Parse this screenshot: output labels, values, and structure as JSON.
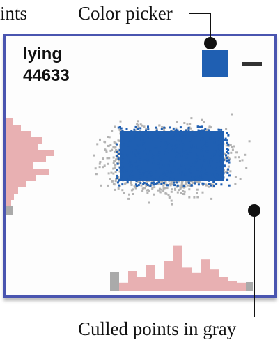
{
  "labels": {
    "cut_left": "ints",
    "color_picker": "Color picker",
    "culled": "Culled points  in gray"
  },
  "panel": {
    "word": "lying",
    "count": "44633"
  },
  "colors": {
    "selected": "#1f5fb2",
    "culled": "#b3b3b3",
    "histogram": "#e8b0b2",
    "histogram_gray": "#aaaaaa",
    "border": "#4a55b0"
  },
  "histogram_bottom": [
    8,
    20,
    14,
    26,
    12,
    30,
    46,
    24,
    18,
    32,
    22,
    14,
    10,
    8
  ],
  "histogram_left": [
    10,
    22,
    36,
    52,
    46,
    70,
    58,
    40,
    62,
    44,
    30,
    18,
    12,
    8
  ]
}
